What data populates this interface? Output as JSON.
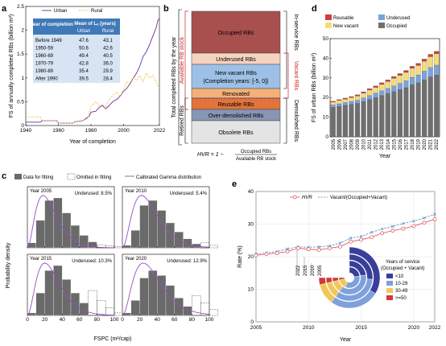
{
  "colors": {
    "urban": "#6a2c9c",
    "rural": "#e3c244",
    "occupied_rb": "#a8504e",
    "underused_rb": "#f6d2c0",
    "new_vacant_rb": "#9dc1e6",
    "renovated_rb": "#f4b078",
    "reusable_rb": "#e2733a",
    "overdem_rb": "#8796b4",
    "obsolete_rb": "#e4e4e4",
    "bar_reusable": "#c94040",
    "bar_underused": "#7ca2de",
    "bar_new_vacant": "#f4dc7a",
    "bar_occupied": "#6f6f6f",
    "hist": "#6a6a6a",
    "gamma": "#9b4cc0",
    "hvr": "#e24848",
    "vacant_ratio": "#4a86c8",
    "ring_lt10": "#383e99",
    "ring_10_29": "#7ea0dc",
    "ring_30_49": "#f0c85a",
    "ring_ge50": "#cf3a3a"
  },
  "panel_a": {
    "label": "a",
    "ylabel": "FS of annually completed RBs (billion m²)",
    "xlabel": "Year of completion",
    "legend": [
      "Urban",
      "Rural"
    ],
    "xticks": [
      "1940",
      "1960",
      "1980",
      "2000",
      "2022"
    ],
    "yticks": [
      "0",
      "0.5",
      "1",
      "1.5",
      "2",
      "2.5"
    ],
    "table": {
      "headers": [
        "Year of completion",
        "Mean of Lᵤ (years)"
      ],
      "subheaders": [
        "",
        "Urban",
        "Rural"
      ],
      "rows": [
        [
          "Before 1949",
          "47.6",
          "43.1"
        ],
        [
          "1950-59",
          "50.6",
          "42.6"
        ],
        [
          "1960-69",
          "49.4",
          "40.5"
        ],
        [
          "1970-79",
          "42.8",
          "36.0"
        ],
        [
          "1980-89",
          "35.4",
          "29.9"
        ],
        [
          "After 1990",
          "39.5",
          "28.4"
        ]
      ]
    }
  },
  "panel_b": {
    "label": "b",
    "boxes": [
      "Occupied RBs",
      "Underused RBs",
      "New vacant RBs",
      "(Completion years: [-5, 0])",
      "Renovated",
      "Reusable RBs",
      "Over-demolished RBs",
      "Obsolete RBs"
    ],
    "left_outer": "Total completed RBs by the year",
    "left_avail": "Available RB stock",
    "left_retired": "Retired RBs",
    "right_inservice": "In-service RBs",
    "right_vacant": "Vacant RBs",
    "right_demolished": "Demolished RBs",
    "formula_lhs": "HVR = 1 −",
    "formula_num": "Occupied RBs",
    "formula_den": "Available RB stock"
  },
  "panel_c": {
    "label": "c",
    "legend": [
      "Data for fitting",
      "Omitted in fitting",
      "Calibrated Gamma distribution"
    ],
    "ylabel": "Probability density",
    "xlabel": "FSPC (m²/cap)",
    "xticks": [
      "0",
      "20",
      "40",
      "60",
      "80",
      "100"
    ],
    "subplots": [
      {
        "year": "Year 2005",
        "underused": "Underused: 8.5%",
        "bars": [
          0.1,
          0.55,
          0.95,
          1.0,
          0.7,
          0.45,
          0.25,
          0.12
        ],
        "omitted": [
          0.06,
          0.04,
          0.02
        ]
      },
      {
        "year": "Year 2010",
        "underused": "Underused: 5.4%",
        "bars": [
          0.05,
          0.35,
          0.85,
          0.95,
          0.75,
          0.5,
          0.32,
          0.18,
          0.08
        ],
        "omitted": [
          0.1,
          0.05
        ]
      },
      {
        "year": "Year 2015",
        "underused": "Underused: 10.3%",
        "bars": [
          0.05,
          0.45,
          0.9,
          1.0,
          0.72,
          0.45,
          0.25
        ],
        "omitted": [
          0.5,
          0.3,
          0.15,
          0.05
        ]
      },
      {
        "year": "Year 2020",
        "underused": "Underused: 12.9%",
        "bars": [
          0.05,
          0.3,
          0.75,
          0.9,
          0.8,
          0.6,
          0.35,
          0.18
        ],
        "omitted": [
          0.4,
          0.25,
          0.12
        ]
      }
    ]
  },
  "panel_d": {
    "label": "d",
    "ylabel": "FS of urban RBs (billion m²)",
    "xlabel": "Year",
    "legend": [
      "Reusable",
      "Underused",
      "New vacant",
      "Occupied"
    ],
    "yticks": [
      "0",
      "10",
      "20",
      "30",
      "40",
      "50"
    ]
  },
  "panel_e": {
    "label": "e",
    "legend": [
      "HVR",
      "Vacant/(Occupied+Vacant)"
    ],
    "ylabel": "Rate (%)",
    "xlabel": "Year",
    "xticks": [
      "2005",
      "2010",
      "2015",
      "2020",
      "2022"
    ],
    "yticks": [
      "0",
      "10",
      "20",
      "30",
      "40"
    ],
    "ring_title": "Years of service",
    "ring_subtitle": "(Occupied + Vacant)",
    "ring_years": [
      "2022",
      "2015",
      "2010",
      "2005"
    ],
    "ring_legend": [
      "<10",
      "10-29",
      "30-49",
      ">=50"
    ]
  },
  "chart_data": [
    {
      "type": "line",
      "panel": "a",
      "xlabel": "Year of completion",
      "ylabel": "FS of annually completed RBs (billion m²)",
      "xlim": [
        1940,
        2022
      ],
      "ylim": [
        0,
        2.5
      ],
      "series": [
        {
          "name": "Urban",
          "x": [
            1940,
            1949,
            1950,
            1959,
            1960,
            1969,
            1970,
            1975,
            1979,
            1980,
            1983,
            1985,
            1987,
            1989,
            1990,
            1992,
            1994,
            1996,
            1998,
            2000,
            2002,
            2004,
            2006,
            2008,
            2010,
            2012,
            2014,
            2016,
            2018,
            2020,
            2021,
            2022
          ],
          "y": [
            0.07,
            0.07,
            0.1,
            0.1,
            0.05,
            0.05,
            0.08,
            0.1,
            0.2,
            0.28,
            0.3,
            0.38,
            0.42,
            0.35,
            0.38,
            0.45,
            0.52,
            0.55,
            0.62,
            0.72,
            0.78,
            0.88,
            1.0,
            1.1,
            1.25,
            1.45,
            1.55,
            1.7,
            1.88,
            2.05,
            2.2,
            2.25
          ]
        },
        {
          "name": "Rural",
          "x": [
            1940,
            1949,
            1950,
            1959,
            1960,
            1969,
            1970,
            1975,
            1978,
            1980,
            1983,
            1985,
            1987,
            1989,
            1990,
            1992,
            1994,
            1996,
            1998,
            2000,
            2002,
            2004,
            2006,
            2008,
            2010,
            2012,
            2014,
            2016,
            2018,
            2020,
            2021,
            2022
          ],
          "y": [
            0.18,
            0.18,
            0.1,
            0.1,
            0.05,
            0.05,
            0.08,
            0.1,
            0.15,
            0.4,
            0.5,
            0.42,
            0.45,
            0.36,
            0.48,
            0.58,
            0.65,
            0.7,
            0.62,
            0.75,
            0.92,
            0.85,
            1.0,
            0.95,
            1.05,
            0.92,
            1.1,
            1.0,
            1.05,
            0.92,
            0.85,
            0.78
          ]
        }
      ]
    },
    {
      "type": "bar",
      "panel": "d",
      "stacked": true,
      "xlabel": "Year",
      "ylabel": "FS of urban RBs (billion m²)",
      "ylim": [
        0,
        50
      ],
      "categories": [
        "2005",
        "2006",
        "2007",
        "2008",
        "2009",
        "2010",
        "2011",
        "2012",
        "2013",
        "2014",
        "2015",
        "2016",
        "2017",
        "2018",
        "2019",
        "2020",
        "2021",
        "2022"
      ],
      "series": [
        {
          "name": "Occupied",
          "values": [
            15.0,
            15.5,
            16.0,
            16.5,
            17.0,
            18.0,
            19.0,
            20.0,
            21.0,
            22.0,
            23.0,
            24.0,
            25.0,
            26.5,
            27.5,
            29.0,
            30.5,
            31.5
          ]
        },
        {
          "name": "Underused",
          "values": [
            1.2,
            1.3,
            1.4,
            1.5,
            1.6,
            1.8,
            2.0,
            2.2,
            2.4,
            2.6,
            2.9,
            3.2,
            3.5,
            3.8,
            4.0,
            4.4,
            4.8,
            5.0
          ]
        },
        {
          "name": "New vacant",
          "values": [
            1.5,
            1.7,
            1.8,
            2.0,
            2.2,
            2.5,
            2.8,
            3.0,
            3.3,
            3.6,
            3.9,
            4.1,
            4.3,
            4.6,
            4.8,
            5.1,
            5.5,
            5.8
          ]
        },
        {
          "name": "Reusable",
          "values": [
            0.4,
            0.4,
            0.5,
            0.5,
            0.6,
            0.6,
            0.7,
            0.7,
            0.8,
            0.8,
            0.9,
            0.9,
            1.0,
            1.0,
            1.1,
            1.1,
            1.2,
            1.2
          ]
        }
      ]
    },
    {
      "type": "line",
      "panel": "e",
      "xlabel": "Year",
      "ylabel": "Rate (%)",
      "xlim": [
        2005,
        2022
      ],
      "ylim": [
        0,
        40
      ],
      "series": [
        {
          "name": "HVR",
          "x": [
            2005,
            2006,
            2007,
            2008,
            2009,
            2010,
            2011,
            2012,
            2013,
            2014,
            2015,
            2016,
            2017,
            2018,
            2019,
            2020,
            2021,
            2022
          ],
          "y": [
            20.4,
            20.8,
            21.1,
            21.6,
            22.6,
            22.3,
            22.1,
            22.6,
            23.1,
            24.6,
            25.2,
            26.0,
            27.2,
            28.0,
            28.6,
            29.4,
            30.4,
            31.5
          ]
        },
        {
          "name": "Vacant/(Occupied+Vacant)",
          "x": [
            2005,
            2006,
            2007,
            2008,
            2009,
            2010,
            2011,
            2012,
            2013,
            2014,
            2015,
            2016,
            2017,
            2018,
            2019,
            2020,
            2021,
            2022
          ],
          "y": [
            20.8,
            21.2,
            21.6,
            22.4,
            23.0,
            22.9,
            23.0,
            23.3,
            24.2,
            25.7,
            26.2,
            27.5,
            28.5,
            29.3,
            30.2,
            30.9,
            31.9,
            33.0
          ]
        }
      ]
    }
  ]
}
